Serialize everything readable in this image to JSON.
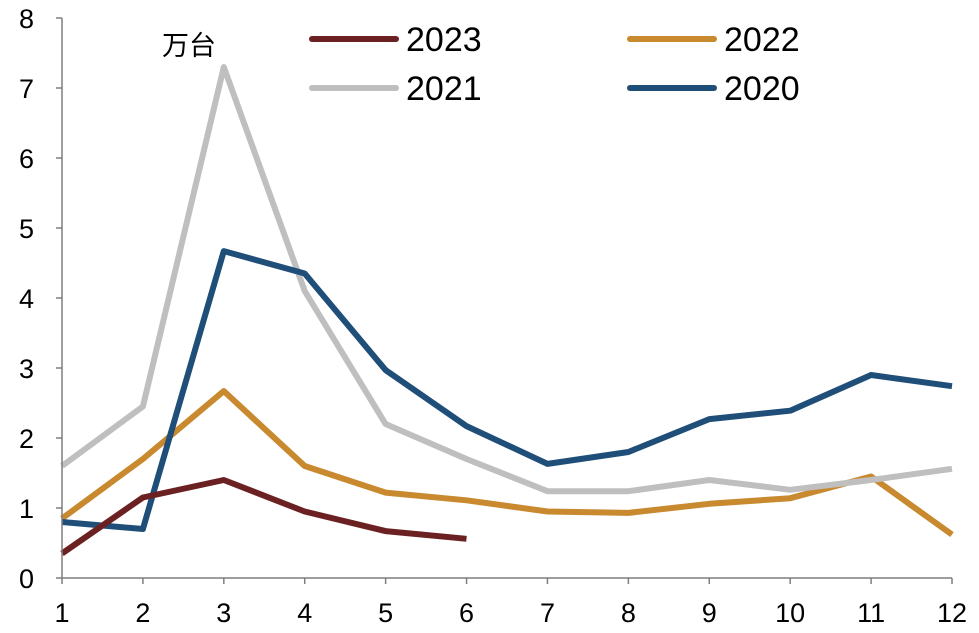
{
  "chart_data": {
    "type": "line",
    "title": "",
    "xlabel": "",
    "ylabel": "",
    "unit_label": "万台",
    "x": [
      1,
      2,
      3,
      4,
      5,
      6,
      7,
      8,
      9,
      10,
      11,
      12
    ],
    "xlim": [
      1,
      12
    ],
    "ylim": [
      0,
      8
    ],
    "y_ticks": [
      0,
      1,
      2,
      3,
      4,
      5,
      6,
      7,
      8
    ],
    "grid": false,
    "legend_position": "top",
    "series": [
      {
        "name": "2023",
        "color": "#6b2121",
        "values": [
          0.35,
          1.15,
          1.4,
          0.95,
          0.67,
          0.56,
          null,
          null,
          null,
          null,
          null,
          null
        ]
      },
      {
        "name": "2022",
        "color": "#c8892f",
        "values": [
          0.85,
          1.7,
          2.67,
          1.6,
          1.22,
          1.11,
          0.95,
          0.93,
          1.06,
          1.14,
          1.45,
          0.62
        ]
      },
      {
        "name": "2021",
        "color": "#bfbfbf",
        "values": [
          1.6,
          2.45,
          7.3,
          4.1,
          2.2,
          1.7,
          1.24,
          1.24,
          1.4,
          1.26,
          1.4,
          1.56
        ]
      },
      {
        "name": "2020",
        "color": "#1f4e79",
        "values": [
          0.8,
          0.7,
          4.67,
          4.35,
          2.97,
          2.17,
          1.63,
          1.8,
          2.27,
          2.39,
          2.9,
          2.74
        ]
      }
    ]
  }
}
